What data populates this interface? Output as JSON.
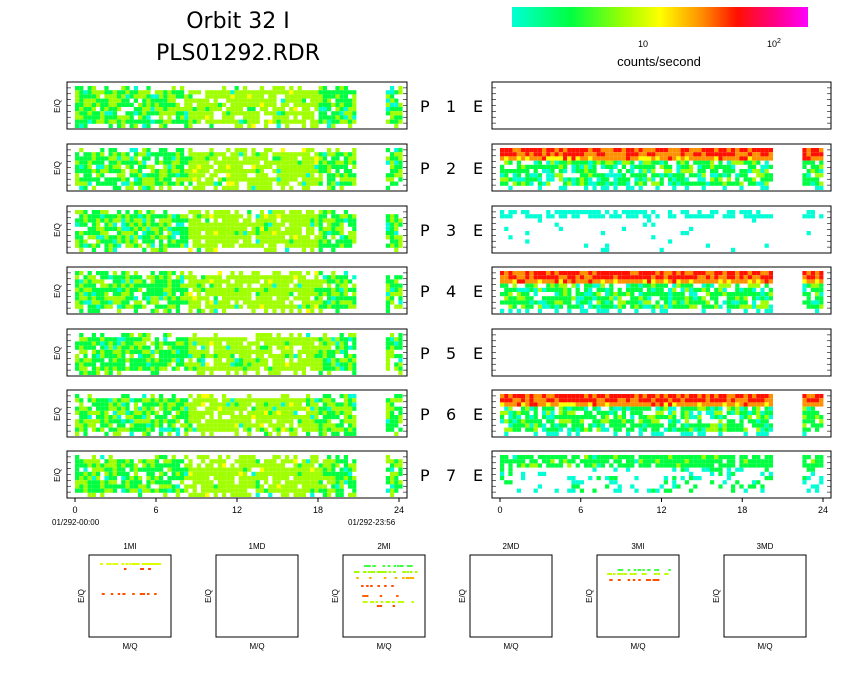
{
  "title": {
    "line1": "Orbit 32 I",
    "line2": "PLS01292.RDR"
  },
  "colorbar": {
    "label": "counts/second",
    "tick1": "10",
    "tick2_base": "10",
    "tick2_exp": "2",
    "stops": [
      "#00ffd4",
      "#00ff40",
      "#a0ff00",
      "#ffff00",
      "#ff9000",
      "#ff1000",
      "#ff0090",
      "#ff00ff"
    ]
  },
  "row_labels": [
    {
      "p": "P",
      "n": "1",
      "e": "E"
    },
    {
      "p": "P",
      "n": "2",
      "e": "E"
    },
    {
      "p": "P",
      "n": "3",
      "e": "E"
    },
    {
      "p": "P",
      "n": "4",
      "e": "E"
    },
    {
      "p": "P",
      "n": "5",
      "e": "E"
    },
    {
      "p": "P",
      "n": "6",
      "e": "E"
    },
    {
      "p": "P",
      "n": "7",
      "e": "E"
    }
  ],
  "ylabel": "E/Q",
  "time_start": "01/292-00:00",
  "time_end": "01/292-23:56",
  "chart_data": [
    {
      "type": "heatmap",
      "name": "ion spectrograms",
      "rows": [
        "1",
        "2",
        "3",
        "4",
        "5",
        "6",
        "7"
      ],
      "x_ticks": [
        "0",
        "6",
        "12",
        "18",
        "24"
      ],
      "xlim": [
        0,
        24
      ],
      "data_gap_hours": [
        19.6,
        21.8
      ],
      "colorscale": "counts/second (log)"
    },
    {
      "type": "heatmap",
      "name": "electron spectrograms",
      "rows": [
        "1",
        "2",
        "3",
        "4",
        "5",
        "6",
        "7"
      ],
      "x_ticks": [
        "0",
        "6",
        "12",
        "18",
        "24"
      ],
      "xlim": [
        0,
        24
      ],
      "data_gap_hours": [
        19.6,
        21.8
      ],
      "empty_rows": [
        "1",
        "5"
      ]
    },
    {
      "type": "scatter",
      "panels": [
        "1MI",
        "1MD",
        "2MI",
        "2MD",
        "3MI",
        "3MD"
      ],
      "xlabel": "M/Q",
      "ylabel": "E/Q",
      "empty_panels": [
        "1MD",
        "2MD",
        "3MD"
      ]
    }
  ]
}
